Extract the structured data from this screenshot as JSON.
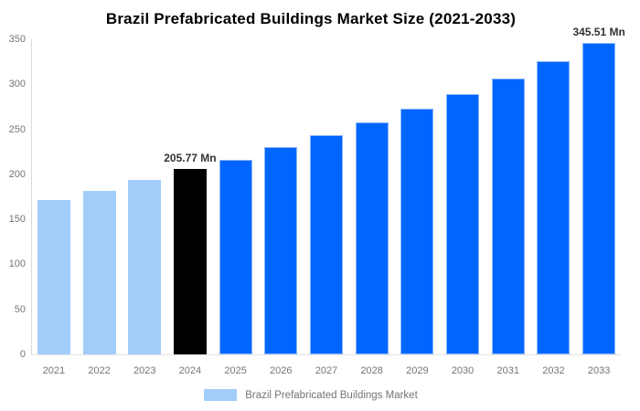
{
  "title": "Brazil Prefabricated Buildings Market Size (2021-2033)",
  "legend": {
    "label": "Brazil Prefabricated Buildings Market",
    "swatch_color": "#a4cdfb"
  },
  "colors": {
    "historical_bar": "#a4cdfb",
    "base_year_bar": "#000000",
    "forecast_bar": "#0066ff",
    "forecast_bar_stroke": "#8ab6f9",
    "axis_text": "#757575",
    "annotation_text": "#333333",
    "axis_line": "#d9d9d9",
    "title_text": "#000000"
  },
  "chart_data": {
    "type": "bar",
    "title": "Brazil Prefabricated Buildings Market Size (2021-2033)",
    "xlabel": "",
    "ylabel": "",
    "unit": "Mn",
    "categories": [
      "2021",
      "2022",
      "2023",
      "2024",
      "2025",
      "2026",
      "2027",
      "2028",
      "2029",
      "2030",
      "2031",
      "2032",
      "2033"
    ],
    "values": [
      171.5,
      181.5,
      194,
      205.77,
      216.5,
      230,
      243.5,
      257.5,
      273,
      289.5,
      306.5,
      325.5,
      345.51
    ],
    "bar_colors": [
      "#a4cdfb",
      "#a4cdfb",
      "#a4cdfb",
      "#000000",
      "#0066ff",
      "#0066ff",
      "#0066ff",
      "#0066ff",
      "#0066ff",
      "#0066ff",
      "#0066ff",
      "#0066ff",
      "#0066ff"
    ],
    "ylim": [
      0,
      350
    ],
    "yticks": [
      0,
      50,
      100,
      150,
      200,
      250,
      300,
      350
    ],
    "grid": false,
    "legend_entries": [
      "Brazil Prefabricated Buildings Market"
    ],
    "legend_position": "bottom",
    "annotations": [
      {
        "index": 3,
        "text": "205.77 Mn"
      },
      {
        "index": 12,
        "text": "345.51 Mn"
      }
    ]
  }
}
